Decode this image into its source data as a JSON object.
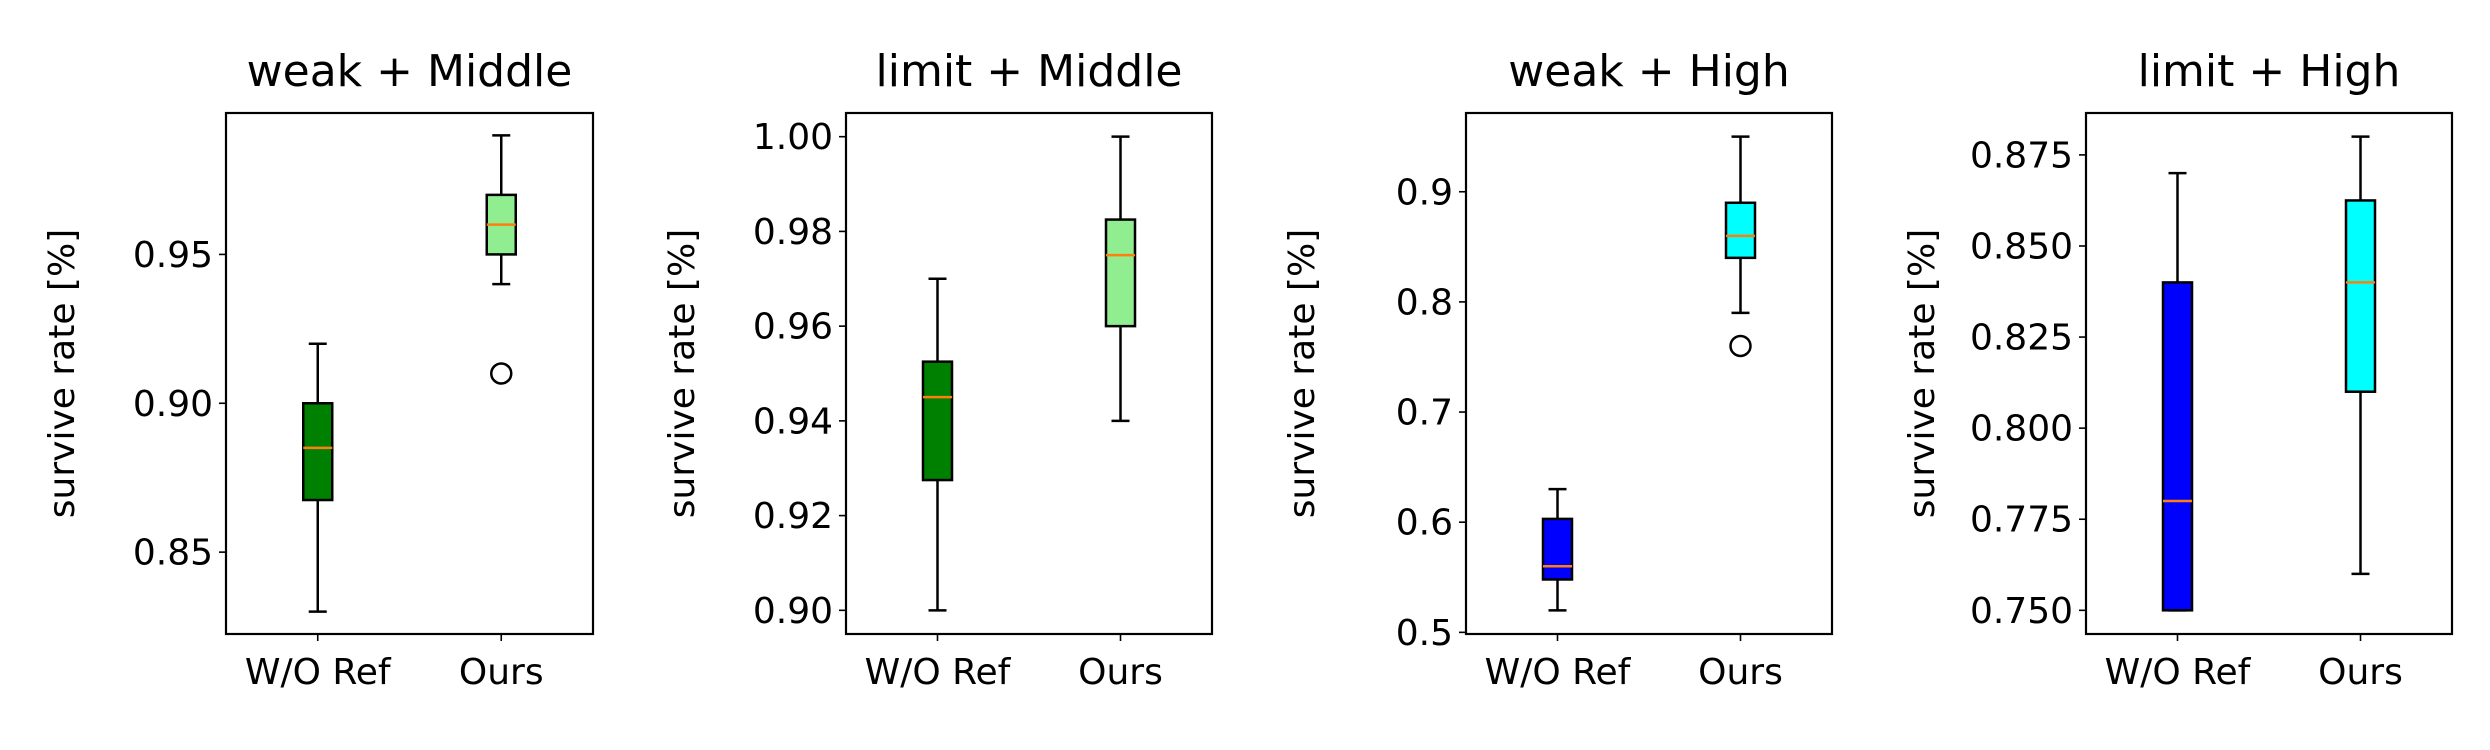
{
  "chart_data": [
    {
      "type": "box",
      "title": "weak + Middle",
      "ylabel": "survive rate [%]",
      "categories": [
        "W/O Ref",
        "Ours"
      ],
      "ylim": [
        0.8225,
        0.9975
      ],
      "yticks": [
        0.85,
        0.9,
        0.95
      ],
      "ytick_labels": [
        "0.85",
        "0.90",
        "0.95"
      ],
      "boxes": [
        {
          "category": "W/O Ref",
          "whisker_low": 0.83,
          "q1": 0.8675,
          "median": 0.885,
          "q3": 0.9,
          "whisker_high": 0.92,
          "fliers": [],
          "color": "#008000"
        },
        {
          "category": "Ours",
          "whisker_low": 0.94,
          "q1": 0.95,
          "median": 0.96,
          "q3": 0.97,
          "whisker_high": 0.99,
          "fliers": [
            0.91
          ],
          "color": "#90ee90"
        }
      ]
    },
    {
      "type": "box",
      "title": "limit + Middle",
      "ylabel": "survive rate [%]",
      "categories": [
        "W/O Ref",
        "Ours"
      ],
      "ylim": [
        0.895,
        1.005
      ],
      "yticks": [
        0.9,
        0.92,
        0.94,
        0.96,
        0.98,
        1.0
      ],
      "ytick_labels": [
        "0.90",
        "0.92",
        "0.94",
        "0.96",
        "0.98",
        "1.00"
      ],
      "boxes": [
        {
          "category": "W/O Ref",
          "whisker_low": 0.9,
          "q1": 0.9275,
          "median": 0.945,
          "q3": 0.9525,
          "whisker_high": 0.97,
          "fliers": [],
          "color": "#008000"
        },
        {
          "category": "Ours",
          "whisker_low": 0.94,
          "q1": 0.96,
          "median": 0.975,
          "q3": 0.9825,
          "whisker_high": 1.0,
          "fliers": [],
          "color": "#90ee90"
        }
      ]
    },
    {
      "type": "box",
      "title": "weak + High",
      "ylabel": "survive rate [%]",
      "categories": [
        "W/O Ref",
        "Ours"
      ],
      "ylim": [
        0.4985,
        0.9715
      ],
      "yticks": [
        0.5,
        0.6,
        0.7,
        0.8,
        0.9
      ],
      "ytick_labels": [
        "0.5",
        "0.6",
        "0.7",
        "0.8",
        "0.9"
      ],
      "boxes": [
        {
          "category": "W/O Ref",
          "whisker_low": 0.52,
          "q1": 0.548,
          "median": 0.56,
          "q3": 0.603,
          "whisker_high": 0.63,
          "fliers": [],
          "color": "#0000ff"
        },
        {
          "category": "Ours",
          "whisker_low": 0.79,
          "q1": 0.84,
          "median": 0.86,
          "q3": 0.89,
          "whisker_high": 0.95,
          "fliers": [
            0.76
          ],
          "color": "#00ffff"
        }
      ]
    },
    {
      "type": "box",
      "title": "limit + High",
      "ylabel": "survive rate [%]",
      "categories": [
        "W/O Ref",
        "Ours"
      ],
      "ylim": [
        0.7435,
        0.8865
      ],
      "yticks": [
        0.75,
        0.775,
        0.8,
        0.825,
        0.85,
        0.875
      ],
      "ytick_labels": [
        "0.750",
        "0.775",
        "0.800",
        "0.825",
        "0.850",
        "0.875"
      ],
      "boxes": [
        {
          "category": "W/O Ref",
          "whisker_low": 0.75,
          "q1": 0.75,
          "median": 0.78,
          "q3": 0.84,
          "whisker_high": 0.87,
          "fliers": [],
          "color": "#0000ff"
        },
        {
          "category": "Ours",
          "whisker_low": 0.76,
          "q1": 0.81,
          "median": 0.84,
          "q3": 0.8625,
          "whisker_high": 0.88,
          "fliers": [],
          "color": "#00ffff"
        }
      ]
    }
  ],
  "style": {
    "median_color": "#ff7f0e",
    "frame_color": "#000000"
  }
}
